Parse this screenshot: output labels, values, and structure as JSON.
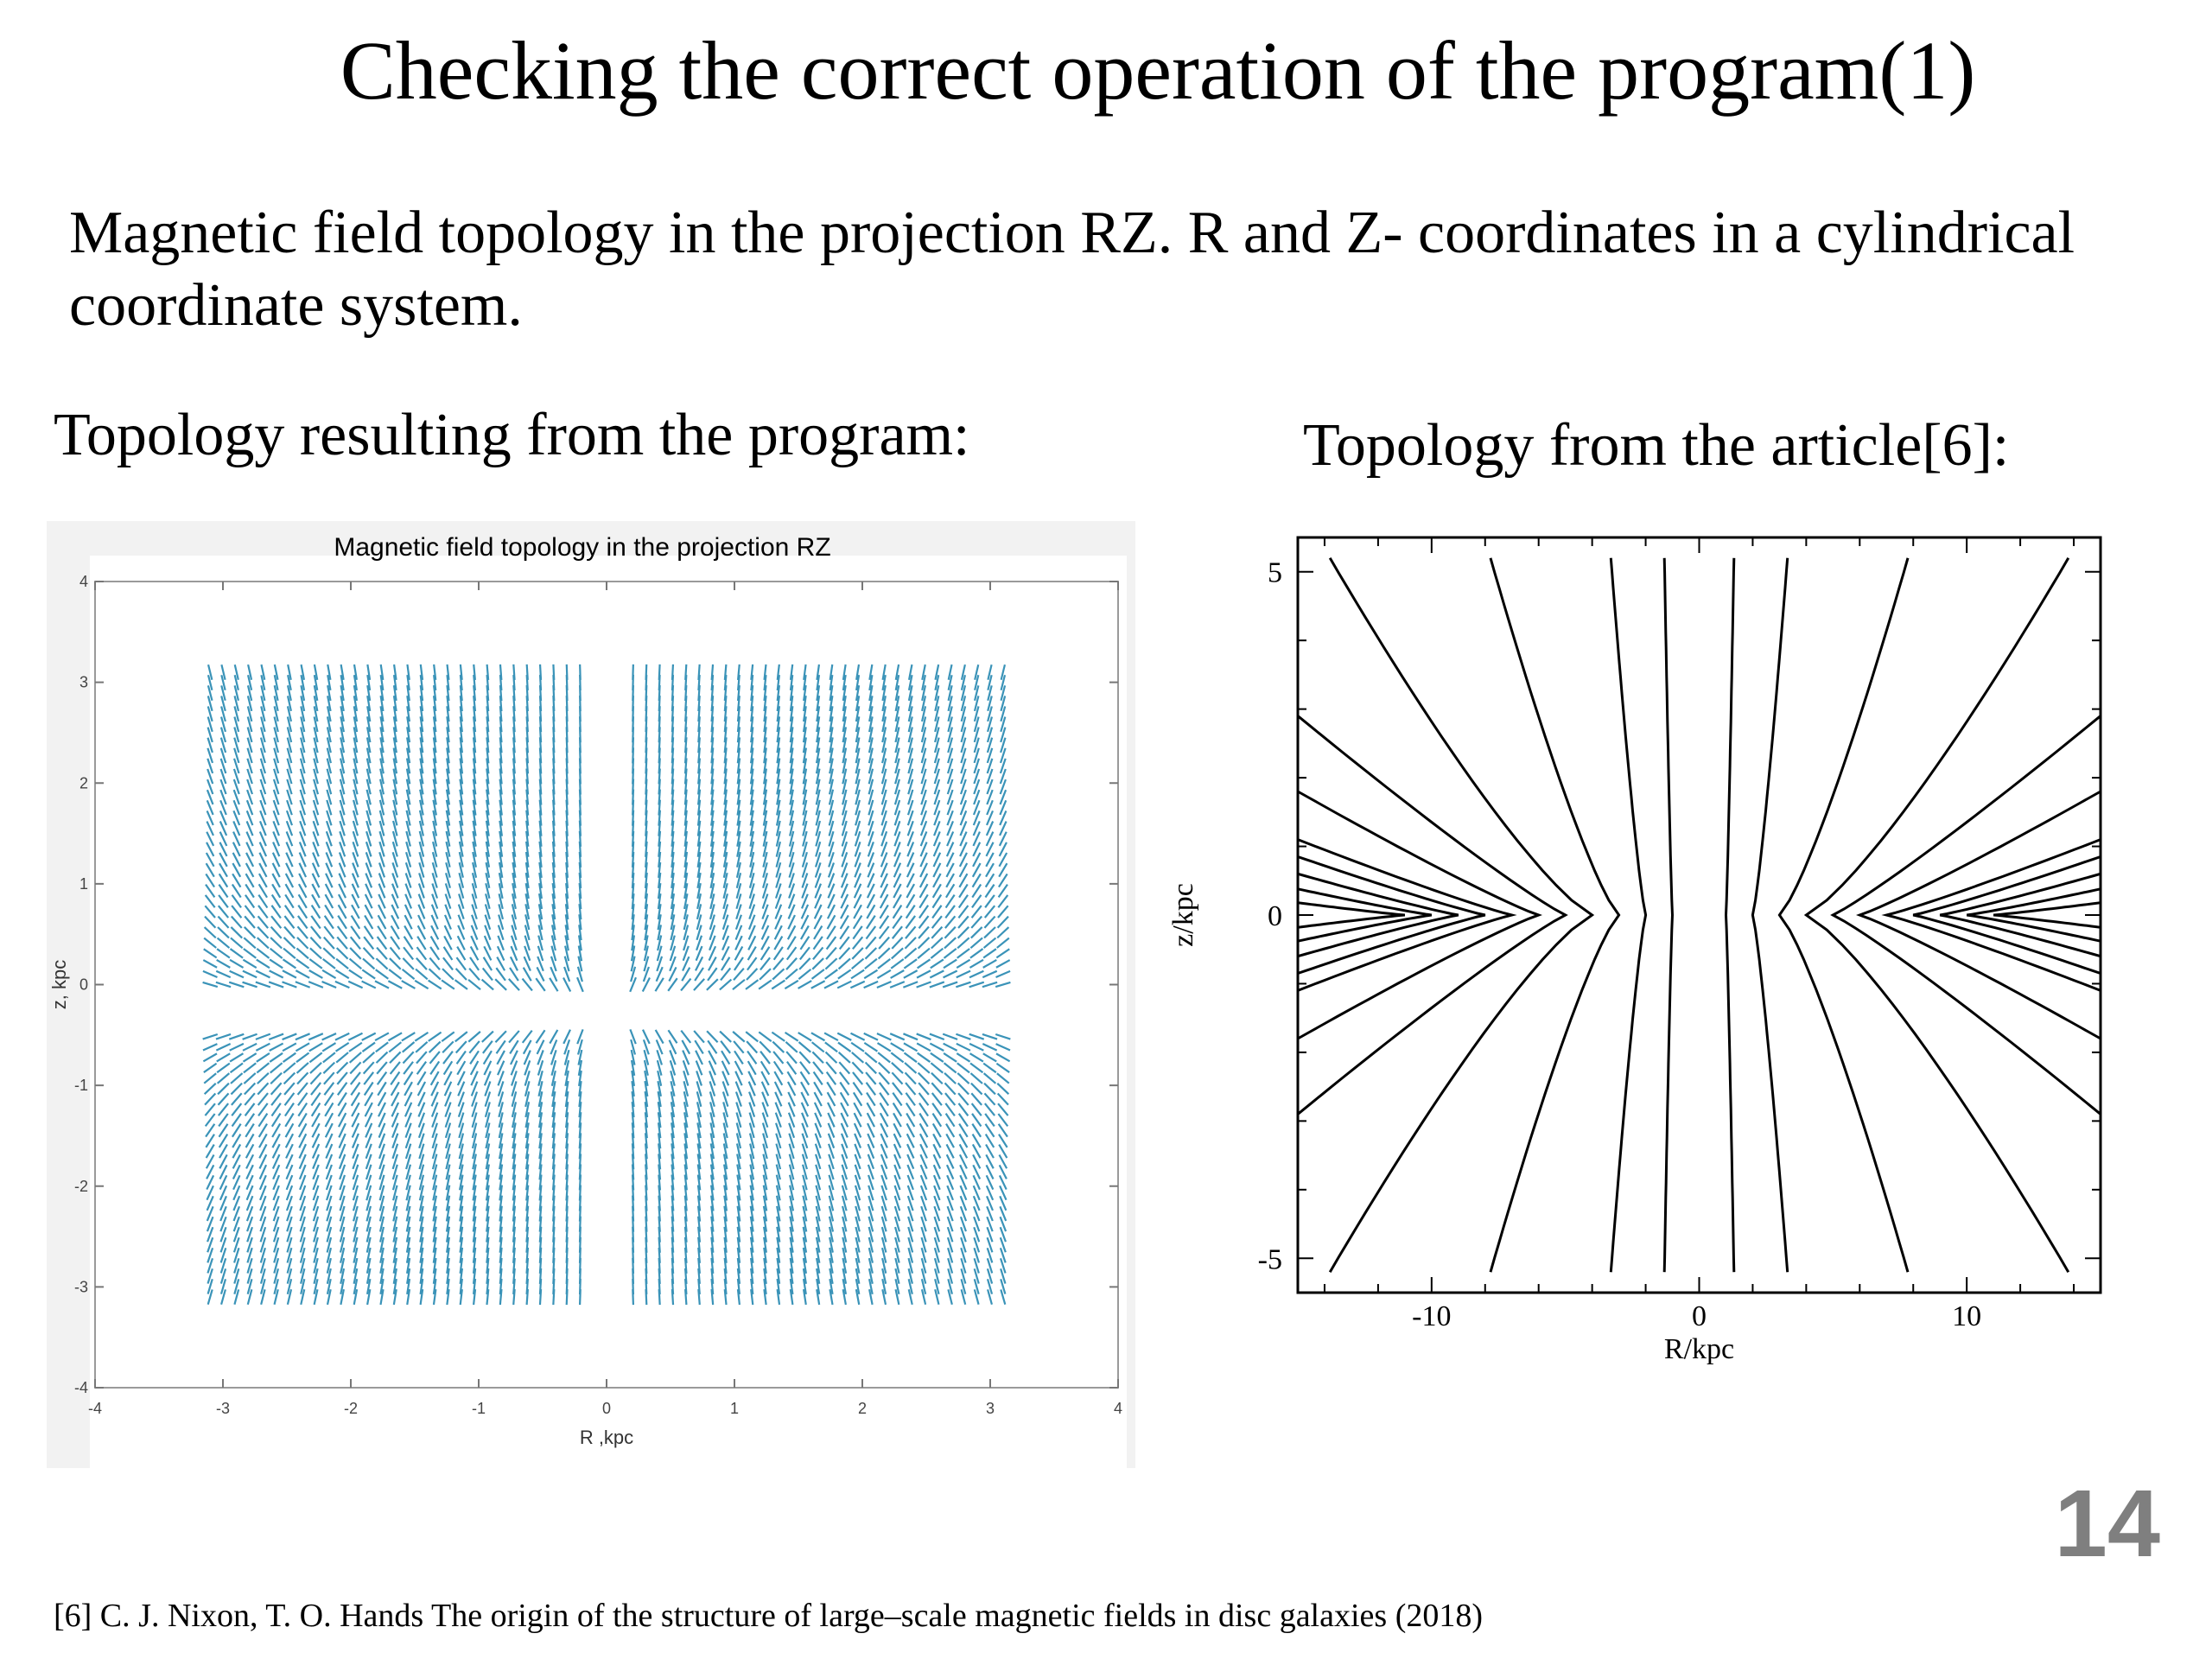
{
  "slide": {
    "title": "Checking the correct operation of the program(1)",
    "subtitle": "Magnetic field topology in the projection RZ. R and Z- coordinates in a cylindrical coordinate system.",
    "left_heading": "Topology resulting from the program:",
    "right_heading": "Topology from the article[6]:",
    "page_number": "14",
    "footnote": "[6] C. J. Nixon, T. O. Hands The origin of the structure of large–scale magnetic fields in disc galaxies (2018)"
  },
  "chart_data": [
    {
      "type": "quiver",
      "title": "Magnetic field topology in the projection RZ",
      "xlabel": "R ,kpc",
      "ylabel": "z, kpc",
      "xlim": [
        -4,
        4
      ],
      "ylim": [
        -4,
        4
      ],
      "xticks": [
        -4,
        -3,
        -2,
        -1,
        0,
        1,
        2,
        3,
        4
      ],
      "yticks": [
        -4,
        -3,
        -2,
        -1,
        0,
        1,
        2,
        3,
        4
      ],
      "grid": false,
      "color": "#3a93b8",
      "field_description_r_range": [
        -3.1,
        3.1
      ],
      "field_description_z_range": [
        -3.1,
        3.1
      ]
    },
    {
      "type": "line",
      "title": "",
      "xlabel": "R/kpc",
      "ylabel": "z/kpc",
      "xlim": [
        -15,
        15
      ],
      "ylim": [
        -5.5,
        5.5
      ],
      "xticks": [
        -10,
        0,
        10
      ],
      "yticks": [
        -5,
        0,
        5
      ],
      "color": "#000000",
      "series": [
        {
          "apex_r": 1.0,
          "r_at_top": 1.3
        },
        {
          "apex_r": 2.0,
          "r_at_top": 3.3
        },
        {
          "apex_r": 3.0,
          "r_at_top": 7.8
        },
        {
          "apex_r": 4.0,
          "r_at_top": 13.8
        },
        {
          "apex_r": 5.0,
          "top_z_at_edge": 2.9
        },
        {
          "apex_r": 6.0,
          "top_z_at_edge": 1.8
        },
        {
          "apex_r": 7.0,
          "top_z_at_edge": 1.1
        },
        {
          "apex_r": 8.0,
          "top_z_at_edge": 0.85
        },
        {
          "apex_r": 9.0,
          "top_z_at_edge": 0.6
        },
        {
          "apex_r": 10.0,
          "top_z_at_edge": 0.38
        },
        {
          "apex_r": 11.0,
          "top_z_at_edge": 0.18
        }
      ]
    }
  ]
}
